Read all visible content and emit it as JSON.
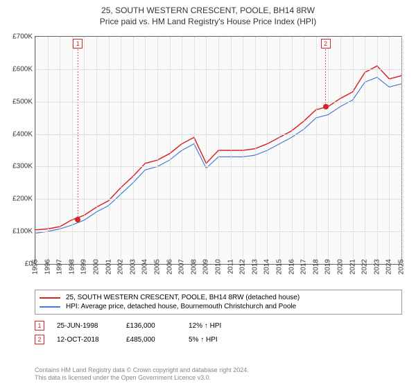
{
  "title": "25, SOUTH WESTERN CRESCENT, POOLE, BH14 8RW",
  "subtitle": "Price paid vs. HM Land Registry's House Price Index (HPI)",
  "chart": {
    "type": "line",
    "background_color": "#fafafa",
    "border_color": "#666666",
    "grid_color": "#dddddd",
    "axis_font_size": 10,
    "ylim": [
      0,
      700000
    ],
    "ytick_step": 100000,
    "yticks": [
      "£0",
      "£100K",
      "£200K",
      "£300K",
      "£400K",
      "£500K",
      "£600K",
      "£700K"
    ],
    "x_years": [
      1995,
      1996,
      1997,
      1998,
      1999,
      2000,
      2001,
      2002,
      2003,
      2004,
      2005,
      2006,
      2007,
      2008,
      2009,
      2010,
      2011,
      2012,
      2013,
      2014,
      2015,
      2016,
      2017,
      2018,
      2019,
      2020,
      2021,
      2022,
      2023,
      2024,
      2025
    ],
    "series": [
      {
        "key": "price_paid",
        "label": "25, SOUTH WESTERN CRESCENT, POOLE, BH14 8RW (detached house)",
        "color": "#d8232a",
        "line_width": 1.5,
        "values": [
          105,
          108,
          115,
          136,
          150,
          175,
          195,
          235,
          270,
          310,
          320,
          340,
          370,
          390,
          310,
          350,
          350,
          350,
          355,
          370,
          390,
          410,
          440,
          475,
          485,
          510,
          530,
          590,
          610,
          570,
          580
        ]
      },
      {
        "key": "hpi",
        "label": "HPI: Average price, detached house, Bournemouth Christchurch and Poole",
        "color": "#4a7bd0",
        "line_width": 1.2,
        "values": [
          95,
          100,
          108,
          120,
          135,
          160,
          180,
          215,
          250,
          290,
          300,
          320,
          350,
          370,
          295,
          330,
          330,
          330,
          335,
          350,
          370,
          390,
          415,
          450,
          460,
          485,
          505,
          560,
          575,
          545,
          555
        ]
      }
    ],
    "markers": [
      {
        "n": "1",
        "year_frac": 1998.48,
        "value": 136,
        "color": "#d8232a"
      },
      {
        "n": "2",
        "year_frac": 2018.78,
        "value": 485,
        "color": "#d8232a"
      }
    ]
  },
  "legend": {
    "items": [
      {
        "color": "#d8232a",
        "label": "25, SOUTH WESTERN CRESCENT, POOLE, BH14 8RW (detached house)"
      },
      {
        "color": "#4a7bd0",
        "label": "HPI: Average price, detached house, Bournemouth Christchurch and Poole"
      }
    ]
  },
  "sales": [
    {
      "n": "1",
      "color": "#d8232a",
      "date": "25-JUN-1998",
      "price": "£136,000",
      "pct": "12%",
      "arrow": "↑",
      "suffix": "HPI"
    },
    {
      "n": "2",
      "color": "#d8232a",
      "date": "12-OCT-2018",
      "price": "£485,000",
      "pct": "5%",
      "arrow": "↑",
      "suffix": "HPI"
    }
  ],
  "footer": {
    "line1": "Contains HM Land Registry data © Crown copyright and database right 2024.",
    "line2": "This data is licensed under the Open Government Licence v3.0."
  }
}
